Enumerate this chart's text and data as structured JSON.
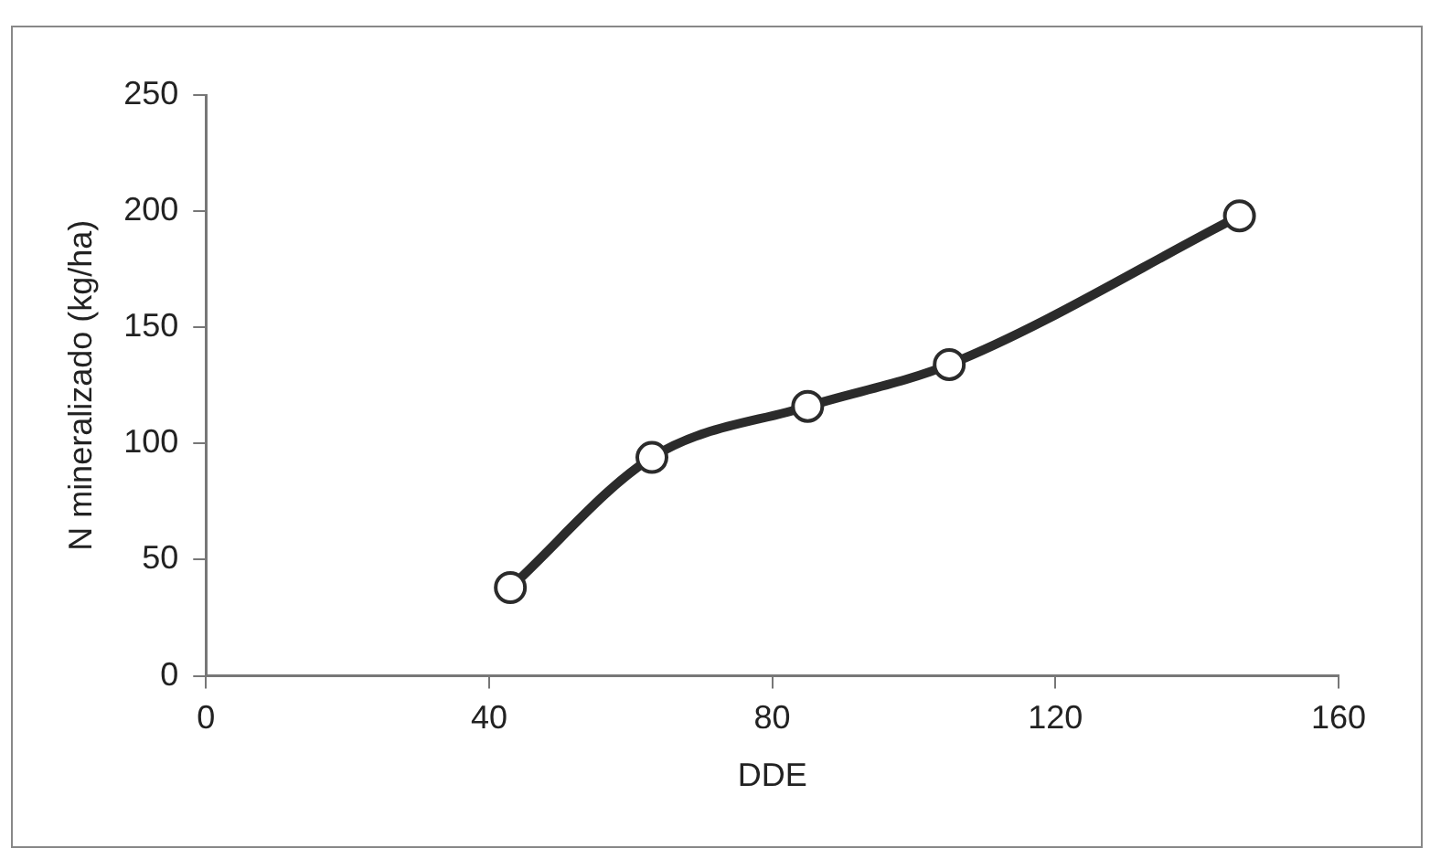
{
  "chart_data": {
    "type": "line",
    "xlabel": "DDE",
    "ylabel": "N mineralizado (kg/ha)",
    "x": [
      43,
      63,
      85,
      105,
      146
    ],
    "series": [
      {
        "color": "#2b2b2b",
        "values": [
          38,
          94,
          116,
          134,
          198
        ]
      }
    ],
    "xlim": [
      0,
      160
    ],
    "xticks": [
      0,
      40,
      80,
      120,
      160
    ],
    "ylim": [
      0,
      250
    ],
    "yticks": [
      0,
      50,
      100,
      150,
      200,
      250
    ],
    "grid": false,
    "legend": false,
    "marker": "circle",
    "line_style": "solid"
  }
}
